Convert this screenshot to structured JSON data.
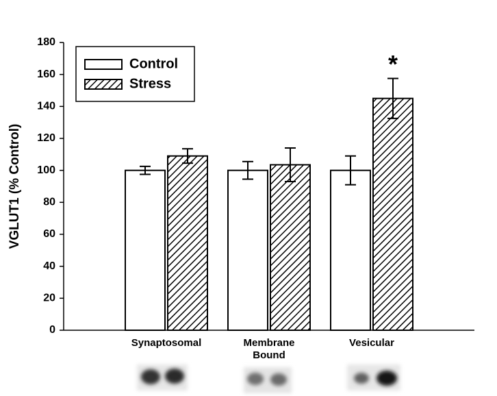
{
  "chart_data": {
    "type": "bar",
    "y_label": "VGLUT1 (% Control)",
    "categories": [
      "Synaptosomal",
      "Membrane Bound",
      "Vesicular"
    ],
    "series": [
      {
        "name": "Control",
        "color": "#ffffff",
        "pattern": "solid",
        "values": [
          100,
          100,
          100
        ],
        "errors": [
          2.5,
          5.5,
          9
        ]
      },
      {
        "name": "Stress",
        "color": "#000000",
        "pattern": "hatch",
        "values": [
          109,
          103.5,
          145
        ],
        "errors": [
          4.5,
          10.5,
          12.5
        ]
      }
    ],
    "annotations": [
      {
        "text": "*",
        "series": 1,
        "category": 2
      }
    ],
    "ylim": [
      0,
      180
    ],
    "yticks": [
      0,
      20,
      40,
      60,
      80,
      100,
      120,
      140,
      160,
      180
    ],
    "grid": false,
    "legend": "upper-left"
  }
}
